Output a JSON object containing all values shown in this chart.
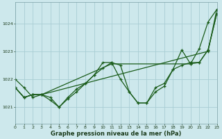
{
  "background_color": "#cde8ec",
  "grid_color": "#a8cdd4",
  "line_color": "#1a5c1a",
  "title": "Graphe pression niveau de la mer (hPa)",
  "xlabel_hours": [
    0,
    1,
    2,
    3,
    4,
    5,
    6,
    7,
    8,
    9,
    10,
    11,
    12,
    13,
    14,
    15,
    16,
    17,
    18,
    19,
    20,
    21,
    22,
    23
  ],
  "yticks": [
    1021,
    1022,
    1023,
    1024
  ],
  "ylim": [
    1020.4,
    1024.75
  ],
  "xlim": [
    0,
    23
  ],
  "series1_x": [
    0,
    1,
    2,
    3,
    4,
    5,
    6,
    7,
    8,
    9,
    10,
    11,
    12,
    13,
    14,
    15,
    16,
    17,
    18,
    19,
    20,
    21,
    22,
    23
  ],
  "series1_y": [
    1022.0,
    1021.7,
    1021.35,
    1021.45,
    1021.25,
    1021.0,
    1021.3,
    1021.55,
    1021.85,
    1022.15,
    1022.6,
    1022.6,
    1022.5,
    1021.55,
    1021.15,
    1021.15,
    1021.7,
    1021.85,
    1022.35,
    1023.05,
    1022.55,
    1023.1,
    1024.05,
    1024.5
  ],
  "series2_x": [
    0,
    1,
    2,
    3,
    4,
    5,
    6,
    7,
    8,
    9,
    10,
    11,
    12,
    13,
    14,
    15,
    16,
    17,
    18,
    19,
    20,
    21,
    22,
    23
  ],
  "series2_y": [
    1021.7,
    1021.35,
    1021.45,
    1021.45,
    1021.35,
    1021.0,
    1021.35,
    1021.65,
    1021.85,
    1022.15,
    1022.4,
    1022.6,
    1022.0,
    1021.55,
    1021.15,
    1021.15,
    1021.55,
    1021.75,
    1022.35,
    1022.5,
    1022.6,
    1022.6,
    1023.05,
    1024.35
  ],
  "series3_x": [
    0,
    1,
    2,
    3,
    11,
    20,
    21,
    22,
    23
  ],
  "series3_y": [
    1021.7,
    1021.35,
    1021.45,
    1021.45,
    1022.55,
    1022.55,
    1022.6,
    1023.05,
    1024.35
  ],
  "series4_x": [
    0,
    1,
    2,
    3,
    22,
    23
  ],
  "series4_y": [
    1021.7,
    1021.35,
    1021.45,
    1021.45,
    1023.0,
    1024.5
  ]
}
